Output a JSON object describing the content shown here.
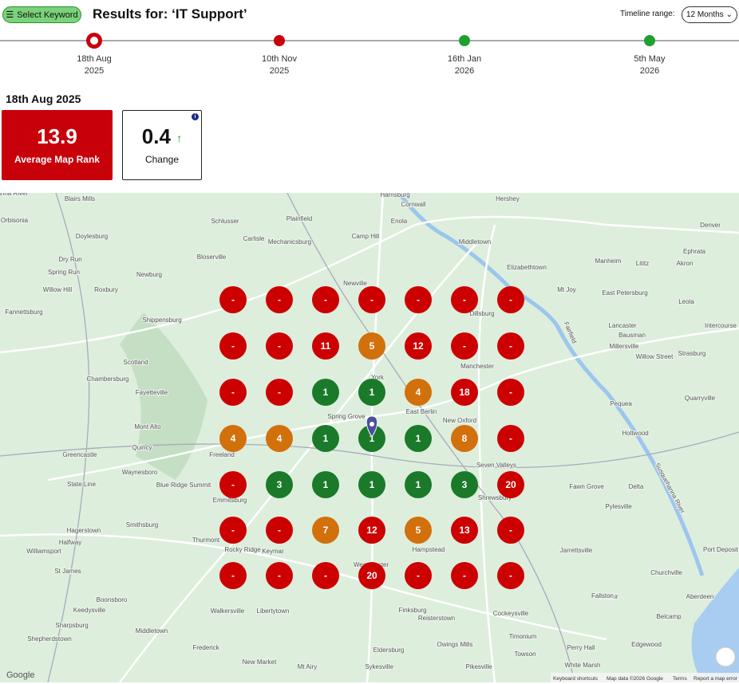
{
  "header": {
    "select_keyword": "Select Keyword",
    "title": "Results for: ‘IT Support’",
    "timeline_range_label": "Timeline range:",
    "timeline_range_value": "12 Months"
  },
  "timeline": [
    {
      "date": "18th Aug",
      "year": "2025",
      "color": "#c8000a",
      "selected": true
    },
    {
      "date": "10th Nov",
      "year": "2025",
      "color": "#c8000a",
      "selected": false
    },
    {
      "date": "16th Jan",
      "year": "2026",
      "color": "#1ea12e",
      "selected": false
    },
    {
      "date": "5th May",
      "year": "2026",
      "color": "#1ea12e",
      "selected": false
    }
  ],
  "selected_date": "18th Aug 2025",
  "summary": {
    "average_rank": 13.9,
    "average_rank_label": "Average Map Rank",
    "change": 0.4,
    "change_label": "Change"
  },
  "grid": {
    "rows": [
      [
        {
          "label": "-",
          "color": "#cc0000"
        },
        {
          "label": "-",
          "color": "#cc0000"
        },
        {
          "label": "-",
          "color": "#cc0000"
        },
        {
          "label": "-",
          "color": "#cc0000"
        },
        {
          "label": "-",
          "color": "#cc0000"
        },
        {
          "label": "-",
          "color": "#cc0000"
        },
        {
          "label": "-",
          "color": "#cc0000"
        }
      ],
      [
        {
          "label": "-",
          "color": "#cc0000"
        },
        {
          "label": "-",
          "color": "#cc0000"
        },
        {
          "label": 11,
          "color": "#cc0000"
        },
        {
          "label": 5,
          "color": "#d2700c"
        },
        {
          "label": 12,
          "color": "#cc0000"
        },
        {
          "label": "-",
          "color": "#cc0000"
        },
        {
          "label": "-",
          "color": "#cc0000"
        }
      ],
      [
        {
          "label": "-",
          "color": "#cc0000"
        },
        {
          "label": "-",
          "color": "#cc0000"
        },
        {
          "label": 1,
          "color": "#1a7a2a"
        },
        {
          "label": 1,
          "color": "#1a7a2a"
        },
        {
          "label": 4,
          "color": "#d2700c"
        },
        {
          "label": 18,
          "color": "#cc0000"
        },
        {
          "label": "-",
          "color": "#cc0000"
        }
      ],
      [
        {
          "label": 4,
          "color": "#d2700c"
        },
        {
          "label": 4,
          "color": "#d2700c"
        },
        {
          "label": 1,
          "color": "#1a7a2a"
        },
        {
          "label": 1,
          "color": "#1a7a2a"
        },
        {
          "label": 1,
          "color": "#1a7a2a"
        },
        {
          "label": 8,
          "color": "#d2700c"
        },
        {
          "label": "-",
          "color": "#cc0000"
        }
      ],
      [
        {
          "label": "-",
          "color": "#cc0000"
        },
        {
          "label": 3,
          "color": "#1a7a2a"
        },
        {
          "label": 1,
          "color": "#1a7a2a"
        },
        {
          "label": 1,
          "color": "#1a7a2a"
        },
        {
          "label": 1,
          "color": "#1a7a2a"
        },
        {
          "label": 3,
          "color": "#1a7a2a"
        },
        {
          "label": 20,
          "color": "#cc0000"
        }
      ],
      [
        {
          "label": "-",
          "color": "#cc0000"
        },
        {
          "label": "-",
          "color": "#cc0000"
        },
        {
          "label": 7,
          "color": "#d2700c"
        },
        {
          "label": 12,
          "color": "#cc0000"
        },
        {
          "label": 5,
          "color": "#d2700c"
        },
        {
          "label": 13,
          "color": "#cc0000"
        },
        {
          "label": "-",
          "color": "#cc0000"
        }
      ],
      [
        {
          "label": "-",
          "color": "#cc0000"
        },
        {
          "label": "-",
          "color": "#cc0000"
        },
        {
          "label": "-",
          "color": "#cc0000"
        },
        {
          "label": 20,
          "color": "#cc0000"
        },
        {
          "label": "-",
          "color": "#cc0000"
        },
        {
          "label": "-",
          "color": "#cc0000"
        },
        {
          "label": "-",
          "color": "#cc0000"
        }
      ]
    ]
  },
  "map": {
    "places": [
      "Blairs Mills",
      "Orbisonia",
      "Doylesburg",
      "Dry Run",
      "Spring Run",
      "Willow Hill",
      "Roxbury",
      "Newburg",
      "Fannettsburg",
      "Shippensburg",
      "Scotland",
      "Chambersburg",
      "Fayetteville",
      "Mont Alto",
      "Greencastle",
      "Quincy",
      "Waynesboro",
      "State Line",
      "Blue Ridge Summit",
      "Smithsburg",
      "Hagerstown",
      "Halfway",
      "Williamsport",
      "St James",
      "Boonsboro",
      "Keedysville",
      "Sharpsburg",
      "Shepherdstown",
      "Middletown",
      "Frederick",
      "New Market",
      "Mt Airy",
      "Walkersville",
      "Libertytown",
      "Emmitsburg",
      "Thurmont",
      "Rocky Ridge",
      "Keymar",
      "Westminster",
      "Hampstead",
      "Finksburg",
      "Reisterstown",
      "Eldersburg",
      "Owings Mills",
      "Sykesville",
      "Pikesville",
      "Towson",
      "Timonium",
      "Cockeysville",
      "Perry Hall",
      "White Marsh",
      "Bel Air",
      "Fallston",
      "Edgewood",
      "Belcamp",
      "Aberdeen",
      "Churchville",
      "Jarrettsville",
      "Pylesville",
      "Fawn Grove",
      "Delta",
      "Port Deposit",
      "Quarryville",
      "Pequea",
      "Holtwood",
      "Millersville",
      "Willow Street",
      "Strasburg",
      "Lancaster",
      "Bausman",
      "Intercourse",
      "Leola",
      "Mt Joy",
      "East Petersburg",
      "Manheim",
      "Lititz",
      "Akron",
      "Ephrata",
      "Denver",
      "Elizabethtown",
      "Middletown",
      "Hershey",
      "Cornwall",
      "Harrisburg",
      "Enola",
      "Camp Hill",
      "Mechanicsburg",
      "Carlisle",
      "Plainfield",
      "Schlusser",
      "Bloserville",
      "Newville",
      "Dillsburg",
      "Manchester",
      "York",
      "East Berlin",
      "Spring Grove",
      "New Oxford",
      "Seven Valleys",
      "Shrewsbury",
      "Freeland",
      "Fairfield",
      "Susquehanna River",
      "Susquehanna River"
    ],
    "attribution": {
      "logo": "Google",
      "shortcuts": "Keyboard shortcuts",
      "data": "Map data ©2026 Google",
      "terms": "Terms",
      "report": "Report a map error"
    }
  }
}
